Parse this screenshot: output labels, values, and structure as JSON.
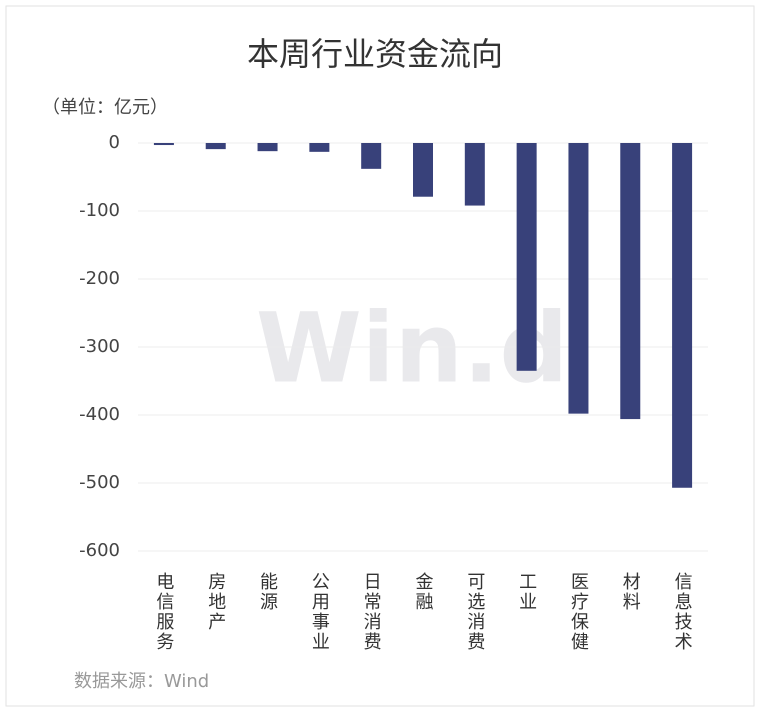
{
  "chart_data": {
    "type": "bar",
    "title": "本周行业资金流向",
    "unit_label": "（单位：亿元）",
    "source": "数据来源：Wind",
    "watermark": "Win.d",
    "categories": [
      "电信服务",
      "房地产",
      "能源",
      "公用事业",
      "日常消费",
      "金融",
      "可选消费",
      "工业",
      "医疗保健",
      "材料",
      "信息技术"
    ],
    "values": [
      -3,
      -9,
      -12,
      -13,
      -38,
      -79,
      -92,
      -335,
      -398,
      -406,
      -507
    ],
    "color": "#38417a",
    "ylim": [
      -600,
      0
    ],
    "yticks": [
      0,
      -100,
      -200,
      -300,
      -400,
      -500,
      -600
    ],
    "grid": true
  }
}
